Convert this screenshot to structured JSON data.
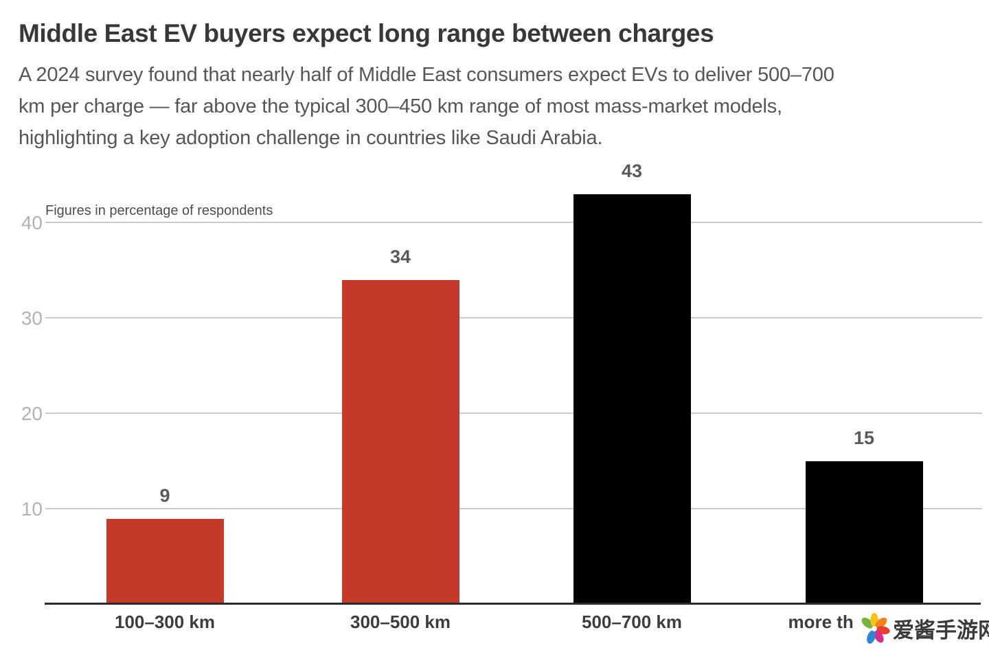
{
  "header": {
    "title": "Middle East EV buyers expect long range between charges",
    "subtitle_lines": [
      "A 2024 survey found that nearly half of Middle East consumers expect EVs to deliver 500–700",
      "km per charge — far above the typical 300–450 km range of most mass-market models,",
      "highlighting a key adoption challenge in countries like Saudi Arabia."
    ]
  },
  "chart_data": {
    "type": "bar",
    "note": "Figures in percentage of respondents",
    "categories": [
      "100–300 km",
      "300–500 km",
      "500–700 km",
      "more than 700 km"
    ],
    "values": [
      9,
      34,
      43,
      15
    ],
    "bar_colors": [
      "#c5392b",
      "#c5392b",
      "#000000",
      "#000000"
    ],
    "yticks": [
      10,
      20,
      30,
      40
    ],
    "ylim": [
      0,
      43
    ],
    "ylabel": "",
    "xlabel": "",
    "unit": "percentage of respondents",
    "grid": "horizontal-only",
    "legend": "none",
    "accent_color": "#c5392b",
    "axis_color": "#2b2b2b",
    "gridline_color": "#c9c9c9",
    "tick_label_color": "#b2b2b2"
  },
  "watermark": {
    "text": "爱酱手游网",
    "logo": "flower-pinwheel-logo",
    "petal_colors": [
      "#74b43c",
      "#f6c21c",
      "#f5821f",
      "#e8402a",
      "#d62c8c",
      "#2f86d2"
    ]
  }
}
